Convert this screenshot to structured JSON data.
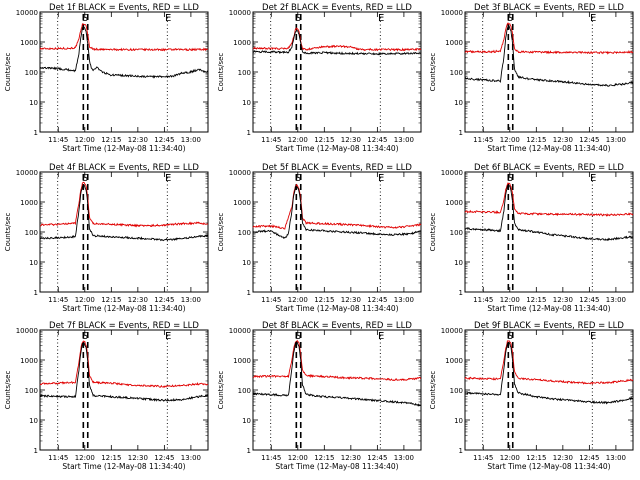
{
  "figure": {
    "xlabel": "Start Time (12-May-08 11:34:40)",
    "ylabel": "Counts/sec",
    "x_tick_labels": [
      "11:45",
      "12:00",
      "12:15",
      "12:30",
      "12:45",
      "13:00"
    ],
    "y_tick_labels": [
      "1",
      "10",
      "100",
      "1000",
      "10000"
    ],
    "colors": {
      "events": "#000000",
      "lld": "#e00000",
      "background": "#ffffff"
    }
  },
  "chart_data": [
    {
      "type": "line",
      "title": "Det 1f BLACK = Events, RED = LLD",
      "x_unit": "minutes after 11:34:40",
      "xlim": [
        0,
        95
      ],
      "ylim": [
        1,
        10000
      ],
      "y_scale": "log",
      "x_ticks": [
        10.33,
        25.33,
        40.33,
        55.33,
        70.33,
        85.33
      ],
      "vlines_dotted": [
        10,
        72
      ],
      "vlines_dashed": [
        24.5,
        27
      ],
      "markers": [
        {
          "label": "S",
          "x": 25.5
        },
        {
          "label": "E",
          "x": 72.5
        }
      ],
      "series": [
        {
          "name": "LLD",
          "x": [
            0,
            15,
            20,
            22,
            23,
            24,
            25,
            26,
            27,
            28,
            30,
            35,
            50,
            70,
            85,
            95
          ],
          "y": [
            600,
            610,
            640,
            1200,
            2400,
            3800,
            4100,
            3400,
            1900,
            700,
            580,
            560,
            560,
            555,
            560,
            570
          ]
        },
        {
          "name": "Events",
          "x": [
            0,
            10,
            20,
            22,
            23,
            24,
            25,
            26,
            27,
            28,
            29,
            30,
            32,
            35,
            40,
            50,
            60,
            70,
            75,
            80,
            85,
            90,
            95
          ],
          "y": [
            140,
            130,
            110,
            400,
            1400,
            3000,
            3300,
            2200,
            900,
            240,
            130,
            110,
            150,
            100,
            80,
            75,
            70,
            70,
            72,
            90,
            100,
            120,
            100
          ]
        }
      ]
    },
    {
      "type": "line",
      "title": "Det 2f BLACK = Events, RED = LLD",
      "x_unit": "minutes after 11:34:40",
      "xlim": [
        0,
        95
      ],
      "ylim": [
        1,
        10000
      ],
      "y_scale": "log",
      "x_ticks": [
        10.33,
        25.33,
        40.33,
        55.33,
        70.33,
        85.33
      ],
      "vlines_dotted": [
        10,
        72
      ],
      "vlines_dashed": [
        24.5,
        27
      ],
      "markers": [
        {
          "label": "S",
          "x": 25.5
        },
        {
          "label": "E",
          "x": 72.5
        }
      ],
      "series": [
        {
          "name": "LLD",
          "x": [
            0,
            15,
            20,
            22,
            23,
            24,
            25,
            26,
            27,
            28,
            30,
            35,
            40,
            50,
            55,
            60,
            70,
            85,
            95
          ],
          "y": [
            620,
            600,
            620,
            900,
            1500,
            2600,
            2900,
            2200,
            1100,
            600,
            560,
            620,
            700,
            720,
            680,
            560,
            560,
            560,
            580
          ]
        },
        {
          "name": "Events",
          "x": [
            0,
            10,
            20,
            22,
            23,
            24,
            25,
            26,
            27,
            28,
            30,
            35,
            40,
            50,
            60,
            70,
            80,
            90,
            95
          ],
          "y": [
            480,
            470,
            450,
            700,
            1300,
            2200,
            2500,
            1800,
            900,
            460,
            420,
            430,
            440,
            420,
            410,
            400,
            410,
            420,
            430
          ]
        }
      ]
    },
    {
      "type": "line",
      "title": "Det 3f BLACK = Events, RED = LLD",
      "x_unit": "minutes after 11:34:40",
      "xlim": [
        0,
        95
      ],
      "ylim": [
        1,
        10000
      ],
      "y_scale": "log",
      "x_ticks": [
        10.33,
        25.33,
        40.33,
        55.33,
        70.33,
        85.33
      ],
      "vlines_dotted": [
        10,
        72
      ],
      "vlines_dashed": [
        24.5,
        27
      ],
      "markers": [
        {
          "label": "S",
          "x": 25.5
        },
        {
          "label": "E",
          "x": 72.5
        }
      ],
      "series": [
        {
          "name": "LLD",
          "x": [
            0,
            15,
            20,
            22,
            23,
            24,
            25,
            26,
            27,
            28,
            30,
            40,
            60,
            80,
            95
          ],
          "y": [
            480,
            470,
            500,
            1200,
            2600,
            4000,
            4200,
            3300,
            1700,
            600,
            470,
            460,
            450,
            440,
            470
          ]
        },
        {
          "name": "Events",
          "x": [
            0,
            10,
            20,
            22,
            23,
            24,
            25,
            26,
            27,
            28,
            30,
            35,
            40,
            50,
            60,
            70,
            80,
            90,
            95
          ],
          "y": [
            60,
            55,
            50,
            300,
            1400,
            3000,
            3500,
            2300,
            800,
            120,
            70,
            60,
            55,
            50,
            45,
            38,
            35,
            40,
            45
          ]
        }
      ]
    },
    {
      "type": "line",
      "title": "Det 4f BLACK = Events, RED = LLD",
      "x_unit": "minutes after 11:34:40",
      "xlim": [
        0,
        95
      ],
      "ylim": [
        1,
        10000
      ],
      "y_scale": "log",
      "x_ticks": [
        10.33,
        25.33,
        40.33,
        55.33,
        70.33,
        85.33
      ],
      "vlines_dotted": [
        10,
        72
      ],
      "vlines_dashed": [
        24.5,
        27
      ],
      "markers": [
        {
          "label": "S",
          "x": 25.5
        },
        {
          "label": "E",
          "x": 72.5
        }
      ],
      "series": [
        {
          "name": "LLD",
          "x": [
            0,
            10,
            20,
            22,
            23,
            24,
            25,
            26,
            27,
            28,
            30,
            40,
            50,
            60,
            70,
            80,
            90,
            95
          ],
          "y": [
            170,
            180,
            200,
            900,
            2400,
            4300,
            4600,
            3500,
            1500,
            300,
            190,
            180,
            170,
            160,
            170,
            190,
            200,
            180
          ]
        },
        {
          "name": "Events",
          "x": [
            0,
            10,
            20,
            22,
            23,
            24,
            25,
            26,
            27,
            28,
            30,
            40,
            50,
            60,
            70,
            80,
            90,
            95
          ],
          "y": [
            60,
            65,
            70,
            500,
            1800,
            3500,
            3800,
            2600,
            900,
            130,
            75,
            70,
            65,
            60,
            55,
            60,
            70,
            75
          ]
        }
      ]
    },
    {
      "type": "line",
      "title": "Det 5f BLACK = Events, RED = LLD",
      "x_unit": "minutes after 11:34:40",
      "xlim": [
        0,
        95
      ],
      "ylim": [
        1,
        10000
      ],
      "y_scale": "log",
      "x_ticks": [
        10.33,
        25.33,
        40.33,
        55.33,
        70.33,
        85.33
      ],
      "vlines_dotted": [
        10,
        72
      ],
      "vlines_dashed": [
        24.5,
        27
      ],
      "markers": [
        {
          "label": "S",
          "x": 25.5
        },
        {
          "label": "E",
          "x": 72.5
        }
      ],
      "series": [
        {
          "name": "LLD",
          "x": [
            0,
            10,
            18,
            22,
            23,
            24,
            25,
            26,
            27,
            28,
            30,
            40,
            50,
            60,
            70,
            80,
            90,
            95
          ],
          "y": [
            150,
            160,
            130,
            700,
            1900,
            3400,
            3700,
            2800,
            1300,
            300,
            200,
            190,
            180,
            170,
            150,
            140,
            160,
            180
          ]
        },
        {
          "name": "Events",
          "x": [
            0,
            10,
            18,
            20,
            22,
            23,
            24,
            25,
            26,
            27,
            28,
            30,
            40,
            50,
            60,
            70,
            80,
            90,
            95
          ],
          "y": [
            100,
            110,
            60,
            90,
            500,
            1600,
            3000,
            3200,
            2300,
            1000,
            200,
            120,
            110,
            100,
            95,
            85,
            80,
            90,
            110
          ]
        }
      ]
    },
    {
      "type": "line",
      "title": "Det 6f BLACK = Events, RED = LLD",
      "x_unit": "minutes after 11:34:40",
      "xlim": [
        0,
        95
      ],
      "ylim": [
        1,
        10000
      ],
      "y_scale": "log",
      "x_ticks": [
        10.33,
        25.33,
        40.33,
        55.33,
        70.33,
        85.33
      ],
      "vlines_dotted": [
        10,
        72
      ],
      "vlines_dashed": [
        24.5,
        27
      ],
      "markers": [
        {
          "label": "S",
          "x": 25.5
        },
        {
          "label": "E",
          "x": 72.5
        }
      ],
      "series": [
        {
          "name": "LLD",
          "x": [
            0,
            10,
            20,
            22,
            23,
            24,
            25,
            26,
            27,
            28,
            30,
            40,
            60,
            80,
            95
          ],
          "y": [
            480,
            470,
            450,
            1100,
            2500,
            4000,
            4300,
            3400,
            1700,
            600,
            420,
            400,
            390,
            370,
            400
          ]
        },
        {
          "name": "Events",
          "x": [
            0,
            10,
            20,
            22,
            23,
            24,
            25,
            26,
            27,
            28,
            30,
            40,
            50,
            60,
            70,
            80,
            90,
            95
          ],
          "y": [
            130,
            120,
            110,
            500,
            1700,
            3300,
            3600,
            2500,
            900,
            200,
            120,
            100,
            80,
            70,
            60,
            55,
            65,
            70
          ]
        }
      ]
    },
    {
      "type": "line",
      "title": "Det 7f BLACK = Events, RED = LLD",
      "x_unit": "minutes after 11:34:40",
      "xlim": [
        0,
        95
      ],
      "ylim": [
        1,
        10000
      ],
      "y_scale": "log",
      "x_ticks": [
        10.33,
        25.33,
        40.33,
        55.33,
        70.33,
        85.33
      ],
      "vlines_dotted": [
        10,
        72
      ],
      "vlines_dashed": [
        24.5,
        27
      ],
      "markers": [
        {
          "label": "S",
          "x": 25.5
        },
        {
          "label": "E",
          "x": 72.5
        }
      ],
      "series": [
        {
          "name": "LLD",
          "x": [
            0,
            10,
            20,
            22,
            23,
            24,
            25,
            26,
            27,
            28,
            30,
            40,
            50,
            60,
            70,
            80,
            90,
            95
          ],
          "y": [
            160,
            170,
            180,
            800,
            2300,
            4000,
            4300,
            3300,
            1500,
            300,
            180,
            170,
            150,
            140,
            130,
            140,
            160,
            150
          ]
        },
        {
          "name": "Events",
          "x": [
            0,
            10,
            20,
            22,
            23,
            24,
            25,
            26,
            27,
            28,
            30,
            40,
            50,
            60,
            70,
            80,
            90,
            95
          ],
          "y": [
            65,
            60,
            60,
            450,
            1700,
            3400,
            3700,
            2500,
            900,
            140,
            65,
            60,
            55,
            50,
            45,
            48,
            60,
            65
          ]
        }
      ]
    },
    {
      "type": "line",
      "title": "Det 8f BLACK = Events, RED = LLD",
      "x_unit": "minutes after 11:34:40",
      "xlim": [
        0,
        95
      ],
      "ylim": [
        1,
        10000
      ],
      "y_scale": "log",
      "x_ticks": [
        10.33,
        25.33,
        40.33,
        55.33,
        70.33,
        85.33
      ],
      "vlines_dotted": [
        10,
        72
      ],
      "vlines_dashed": [
        24.5,
        27
      ],
      "markers": [
        {
          "label": "S",
          "x": 25.5
        },
        {
          "label": "E",
          "x": 72.5
        }
      ],
      "series": [
        {
          "name": "LLD",
          "x": [
            0,
            10,
            20,
            22,
            23,
            24,
            25,
            26,
            27,
            28,
            30,
            40,
            50,
            60,
            70,
            80,
            90,
            95
          ],
          "y": [
            280,
            290,
            280,
            1000,
            2500,
            4200,
            4500,
            3500,
            1600,
            450,
            300,
            280,
            260,
            250,
            240,
            220,
            230,
            250
          ]
        },
        {
          "name": "Events",
          "x": [
            0,
            10,
            20,
            22,
            23,
            24,
            25,
            26,
            27,
            28,
            30,
            40,
            50,
            60,
            70,
            80,
            90,
            95
          ],
          "y": [
            75,
            70,
            65,
            500,
            1800,
            3600,
            3900,
            2700,
            1000,
            150,
            70,
            60,
            55,
            50,
            45,
            40,
            35,
            30
          ]
        }
      ]
    },
    {
      "type": "line",
      "title": "Det 9f BLACK = Events, RED = LLD",
      "x_unit": "minutes after 11:34:40",
      "xlim": [
        0,
        95
      ],
      "ylim": [
        1,
        10000
      ],
      "y_scale": "log",
      "x_ticks": [
        10.33,
        25.33,
        40.33,
        55.33,
        70.33,
        85.33
      ],
      "vlines_dotted": [
        10,
        72
      ],
      "vlines_dashed": [
        24.5,
        27
      ],
      "markers": [
        {
          "label": "S",
          "x": 25.5
        },
        {
          "label": "E",
          "x": 72.5
        }
      ],
      "series": [
        {
          "name": "LLD",
          "x": [
            0,
            10,
            20,
            22,
            23,
            24,
            25,
            26,
            27,
            28,
            30,
            40,
            50,
            60,
            70,
            80,
            90,
            95
          ],
          "y": [
            250,
            240,
            230,
            1000,
            2500,
            4100,
            4400,
            3400,
            1600,
            400,
            250,
            220,
            200,
            180,
            170,
            175,
            200,
            220
          ]
        },
        {
          "name": "Events",
          "x": [
            0,
            10,
            20,
            22,
            23,
            24,
            25,
            26,
            27,
            28,
            30,
            40,
            50,
            60,
            70,
            80,
            90,
            95
          ],
          "y": [
            80,
            75,
            70,
            500,
            1800,
            3500,
            3800,
            2600,
            900,
            160,
            80,
            60,
            50,
            45,
            40,
            38,
            45,
            55
          ]
        }
      ]
    }
  ]
}
